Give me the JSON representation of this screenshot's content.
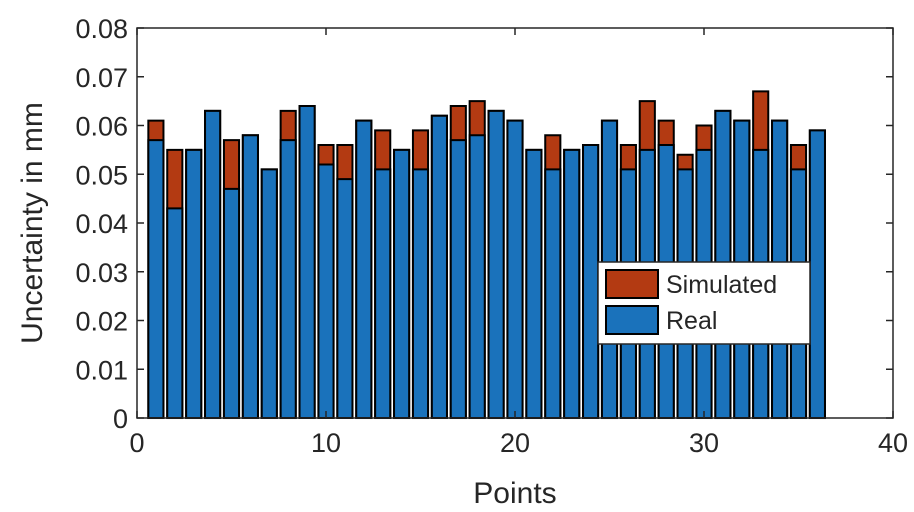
{
  "chart_data": {
    "type": "bar",
    "stacked": "overlay",
    "title": "",
    "xlabel": "Points",
    "ylabel": "Uncertainty in mm",
    "xlim": [
      0,
      40
    ],
    "ylim": [
      0,
      0.08
    ],
    "xticks": [
      0,
      10,
      20,
      30,
      40
    ],
    "yticks": [
      0,
      0.01,
      0.02,
      0.03,
      0.04,
      0.05,
      0.06,
      0.07,
      0.08
    ],
    "xtick_labels": [
      "0",
      "10",
      "20",
      "30",
      "40"
    ],
    "ytick_labels": [
      "0",
      "0.01",
      "0.02",
      "0.03",
      "0.04",
      "0.05",
      "0.06",
      "0.07",
      "0.08"
    ],
    "legend_placement": "lower-right",
    "grid": false,
    "x": [
      1,
      2,
      3,
      4,
      5,
      6,
      7,
      8,
      9,
      10,
      11,
      12,
      13,
      14,
      15,
      16,
      17,
      18,
      19,
      20,
      21,
      22,
      23,
      24,
      25,
      26,
      27,
      28,
      29,
      30,
      31,
      32,
      33,
      34,
      35,
      36
    ],
    "series": [
      {
        "name": "Simulated",
        "color": "#b33a12",
        "values": [
          0.061,
          0.055,
          0.055,
          0.063,
          0.057,
          0.058,
          0.051,
          0.063,
          0.064,
          0.056,
          0.056,
          0.061,
          0.059,
          0.055,
          0.059,
          0.062,
          0.064,
          0.065,
          0.063,
          0.061,
          0.055,
          0.058,
          0.055,
          0.056,
          0.061,
          0.056,
          0.065,
          0.061,
          0.054,
          0.06,
          0.063,
          0.061,
          0.067,
          0.061,
          0.056,
          0.059
        ]
      },
      {
        "name": "Real",
        "color": "#1a72bb",
        "values": [
          0.057,
          0.043,
          0.055,
          0.063,
          0.047,
          0.058,
          0.051,
          0.057,
          0.064,
          0.052,
          0.049,
          0.061,
          0.051,
          0.055,
          0.051,
          0.062,
          0.057,
          0.058,
          0.063,
          0.061,
          0.055,
          0.051,
          0.055,
          0.056,
          0.061,
          0.051,
          0.055,
          0.056,
          0.051,
          0.055,
          0.063,
          0.061,
          0.055,
          0.061,
          0.051,
          0.059
        ]
      }
    ]
  }
}
